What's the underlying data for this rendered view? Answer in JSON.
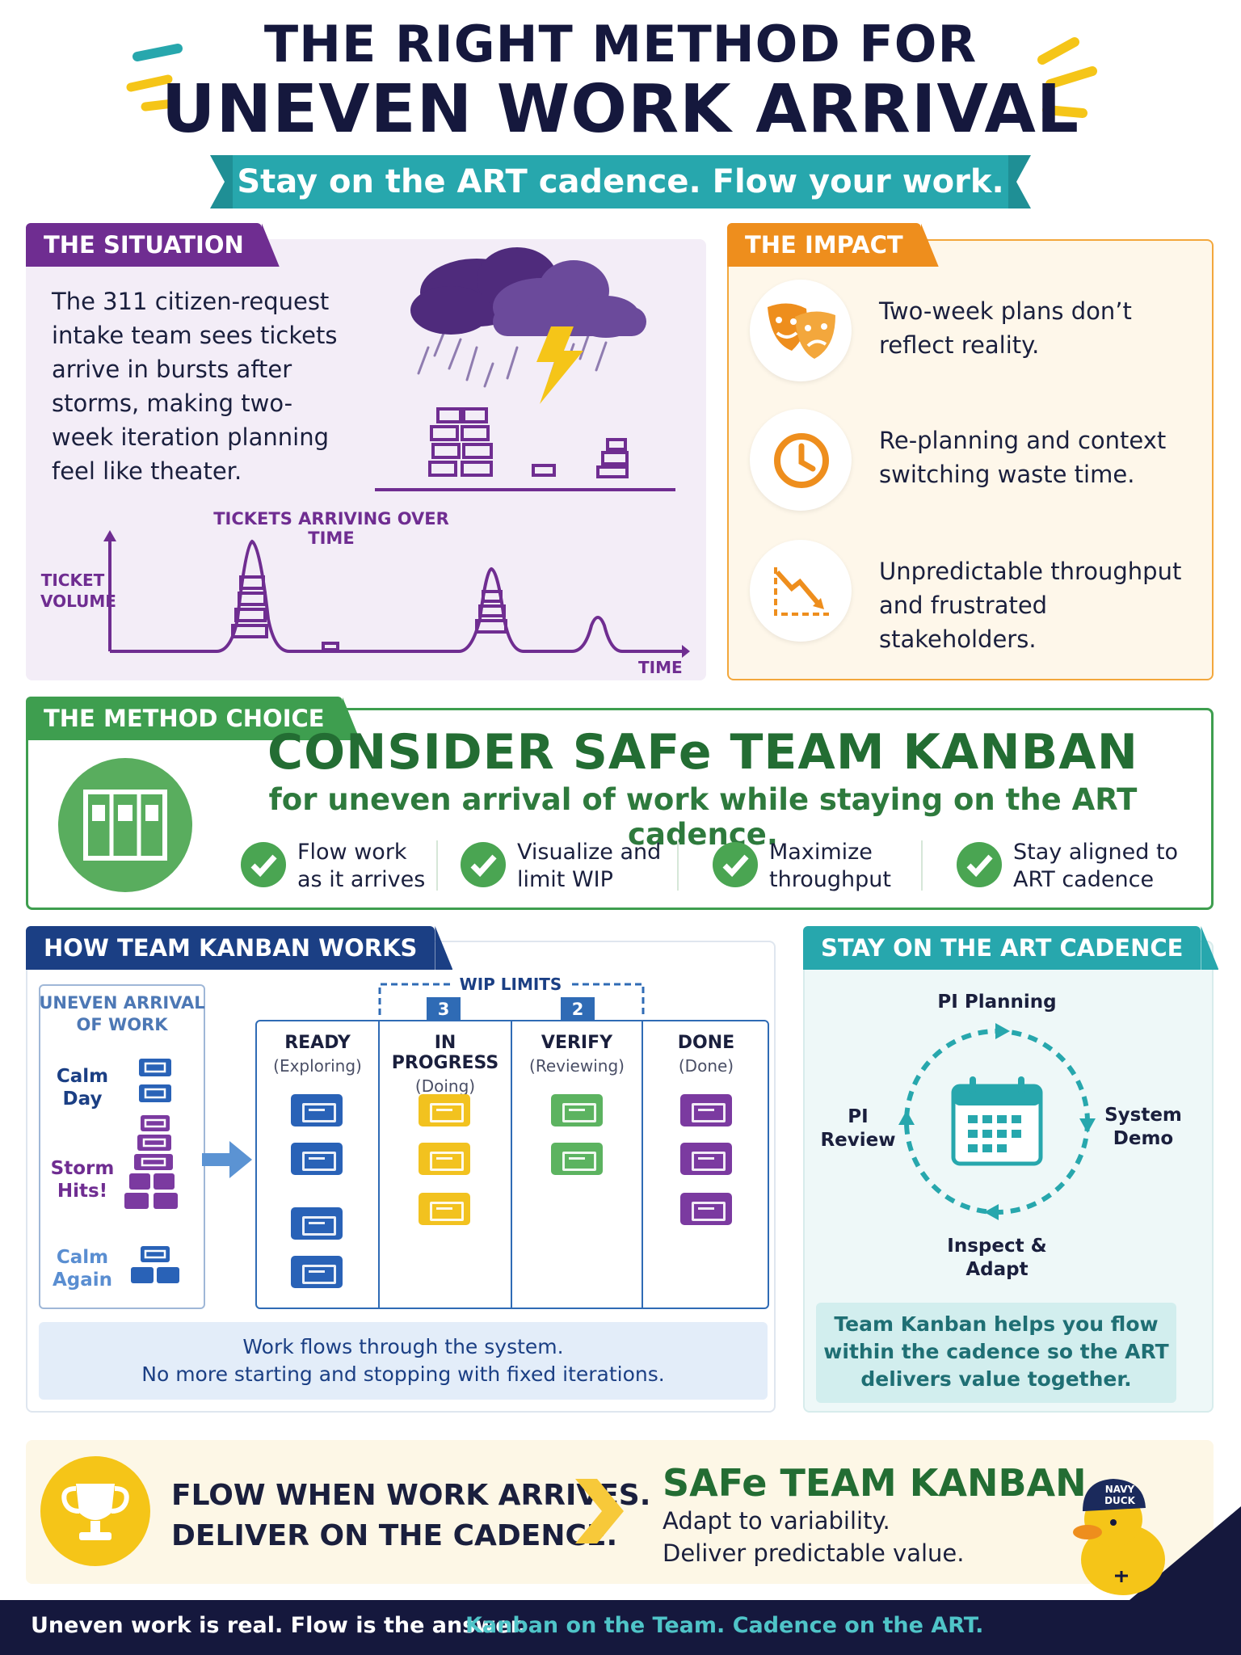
{
  "header": {
    "title_line1": "THE RIGHT METHOD FOR",
    "title_line2": "UNEVEN WORK ARRIVAL",
    "banner": "Stay on the ART cadence. Flow your work."
  },
  "situation": {
    "tab": "THE SITUATION",
    "text": "The 311 citizen-request intake team sees tickets arrive in bursts after storms, making two-week iteration planning feel like theater.",
    "chart_title": "TICKETS ARRIVING OVER TIME",
    "y_label_1": "TICKET",
    "y_label_2": "VOLUME",
    "x_label": "TIME"
  },
  "impact": {
    "tab": "THE IMPACT",
    "items": [
      {
        "icon": "theater-masks-icon",
        "text": "Two-week plans don’t reflect reality."
      },
      {
        "icon": "clock-icon",
        "text": "Re-planning and context switching waste time."
      },
      {
        "icon": "declining-chart-icon",
        "text": "Unpredictable throughput and frustrated stakeholders."
      }
    ]
  },
  "method": {
    "tab": "THE METHOD CHOICE",
    "title": "CONSIDER SAFe TEAM KANBAN",
    "subtitle": "for uneven arrival of work while staying on the ART cadence.",
    "checks": [
      {
        "line1": "Flow work",
        "line2": "as it arrives"
      },
      {
        "line1": "Visualize and",
        "line2": "limit WIP"
      },
      {
        "line1": "Maximize",
        "line2": "throughput"
      },
      {
        "line1": "Stay aligned to",
        "line2": "ART cadence"
      }
    ]
  },
  "how": {
    "tab": "HOW TEAM KANBAN WORKS",
    "uneven_title_1": "UNEVEN ARRIVAL",
    "uneven_title_2": "OF WORK",
    "calm_day_1": "Calm",
    "calm_day_2": "Day",
    "storm_1": "Storm",
    "storm_2": "Hits!",
    "calm_again_1": "Calm",
    "calm_again_2": "Again",
    "wip_label": "WIP LIMITS",
    "wip_in_progress": "3",
    "wip_verify": "2",
    "columns": [
      {
        "name": "READY",
        "sub": "(Exploring)"
      },
      {
        "name": "IN PROGRESS",
        "sub": "(Doing)"
      },
      {
        "name": "VERIFY",
        "sub": "(Reviewing)"
      },
      {
        "name": "DONE",
        "sub": "(Done)"
      }
    ],
    "note_line1": "Work flows through the system.",
    "note_line2": "No more starting and stopping with fixed iterations."
  },
  "art": {
    "tab": "STAY ON THE ART CADENCE",
    "pi_planning": "PI Planning",
    "system_1": "System",
    "system_2": "Demo",
    "pi_review_1": "PI",
    "pi_review_2": "Review",
    "inspect_1": "Inspect &",
    "inspect_2": "Adapt",
    "note": "Team Kanban helps you flow within the cadence so the ART delivers value together."
  },
  "footer": {
    "slogan_1": "FLOW WHEN WORK ARRIVES.",
    "slogan_2": "DELIVER ON THE CADENCE.",
    "safe_title": "SAFe TEAM KANBAN",
    "safe_sub_1": "Adapt to variability.",
    "safe_sub_2": "Deliver predictable value.",
    "duck_hat_1": "NAVY",
    "duck_hat_2": "DUCK",
    "bottom_a": "Uneven work is real. Flow is the answer.",
    "bottom_b": "Kanban on the Team. Cadence on the ART."
  },
  "colors": {
    "navy": "#15183d",
    "teal": "#27a7ad",
    "purple": "#6f2d91",
    "orange": "#ee8e1d",
    "green": "#3e9e4f",
    "blue": "#1b3f84",
    "yellow": "#f5c518"
  }
}
